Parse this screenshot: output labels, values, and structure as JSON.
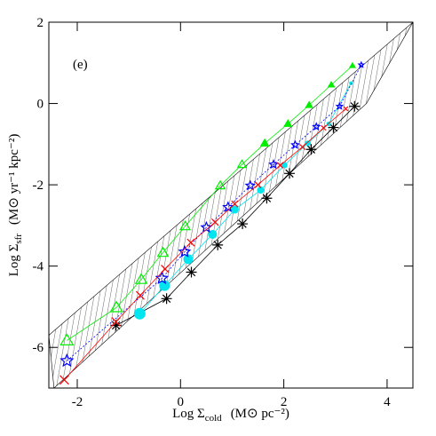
{
  "chart_data": {
    "type": "scatter",
    "annotation": "(e)",
    "x_label": [
      "Log Σ",
      "cold",
      "(M⊙ pc⁻²)"
    ],
    "y_label": [
      "Log Σ",
      "sfr",
      "(M⊙ yr⁻¹ kpc⁻²)"
    ],
    "xlim": [
      -2.55,
      4.5
    ],
    "ylim": [
      -7,
      2
    ],
    "xticks": [
      -2,
      0,
      2,
      4
    ],
    "yticks": [
      -6,
      -4,
      -2,
      0,
      2
    ],
    "band": {
      "x": [
        -2.45,
        3.6,
        4.5,
        4.5,
        -2.55
      ],
      "y": [
        -7,
        0,
        2,
        2,
        -5.7
      ]
    },
    "series": [
      {
        "marker": "asterisk",
        "color": "#000000",
        "line": "solid",
        "x": [
          -1.25,
          -0.27,
          0.21,
          0.72,
          1.2,
          1.67,
          2.11,
          2.53,
          2.96,
          3.37
        ],
        "values": [
          -5.46,
          -4.8,
          -4.15,
          -3.48,
          -2.96,
          -2.33,
          -1.72,
          -1.13,
          -0.59,
          -0.07
        ]
      },
      {
        "marker": "circle",
        "color": "#00e5ee",
        "line": "solid",
        "x": [
          -0.79,
          -0.31,
          0.15,
          0.62,
          1.05,
          1.55,
          2.01,
          2.46,
          2.87,
          3.3
        ],
        "values": [
          -5.17,
          -4.48,
          -3.83,
          -3.22,
          -2.61,
          -2.13,
          -1.52,
          -0.98,
          -0.5,
          0.5
        ]
      },
      {
        "marker": "star",
        "color": "#0000ff",
        "line": "dotted",
        "x": [
          -2.2,
          -0.36,
          0.08,
          0.5,
          0.92,
          1.35,
          1.8,
          2.22,
          2.63,
          3.08,
          3.5
        ],
        "values": [
          -6.33,
          -4.3,
          -3.65,
          -3.05,
          -2.55,
          -2.02,
          -1.5,
          -1.02,
          -0.57,
          -0.07,
          0.95
        ]
      },
      {
        "marker": "triangle",
        "color": "#00ee00",
        "line": "solid",
        "x": [
          -2.2,
          -1.24,
          -0.76,
          -0.34,
          0.09,
          0.77,
          1.19,
          1.63,
          2.08,
          2.49,
          2.92,
          3.33
        ],
        "values": [
          -5.83,
          -5.02,
          -4.33,
          -3.67,
          -3.02,
          -2.02,
          -1.5,
          -0.98,
          -0.5,
          -0.04,
          0.46,
          0.93
        ]
      },
      {
        "marker": "cross",
        "color": "#ff0000",
        "line": "solid",
        "x": [
          -2.25,
          -1.25,
          -0.78,
          -0.3,
          0.2,
          0.67,
          1.05,
          1.5,
          1.93,
          2.36,
          2.77,
          3.2
        ],
        "values": [
          -6.8,
          -5.37,
          -4.72,
          -4.07,
          -3.42,
          -2.92,
          -2.47,
          -2.0,
          -1.52,
          -1.07,
          -0.6,
          -0.13
        ]
      }
    ]
  }
}
